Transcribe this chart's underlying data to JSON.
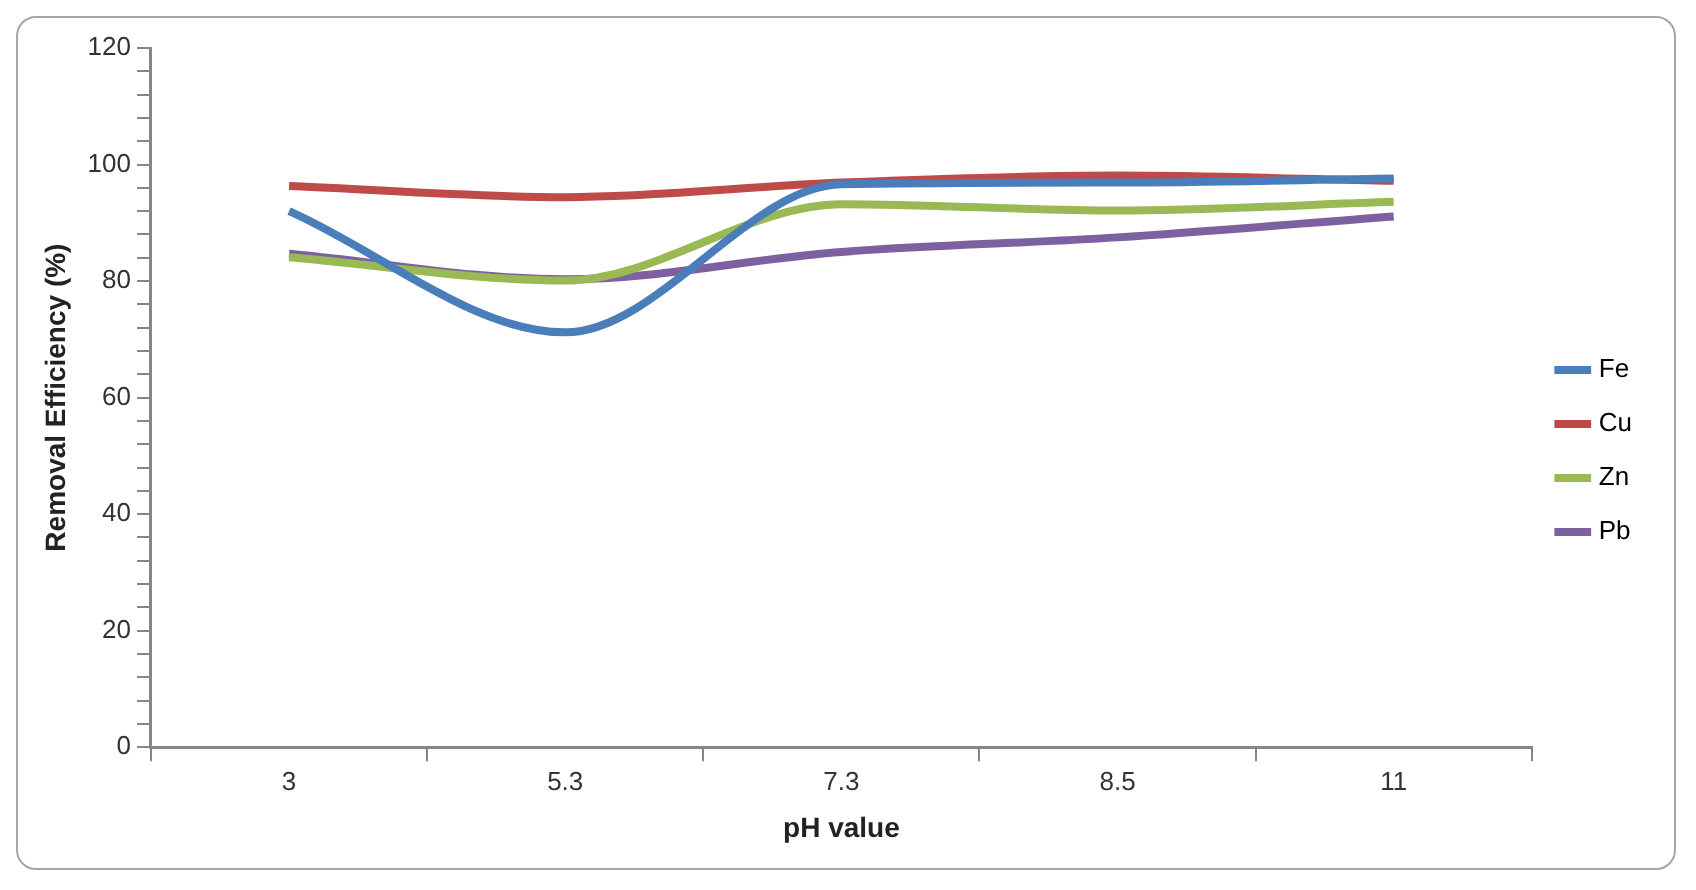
{
  "chart_data": {
    "type": "line",
    "xlabel": "pH value",
    "ylabel": "Removal Efficiency (%)",
    "categories": [
      "3",
      "5.3",
      "7.3",
      "8.5",
      "11"
    ],
    "series": [
      {
        "name": "Fe",
        "color": "#4a7ebb",
        "values": [
          92,
          71.2,
          96.6,
          96.9,
          97.6
        ]
      },
      {
        "name": "Cu",
        "color": "#be4b48",
        "values": [
          96.3,
          94.4,
          96.9,
          98.1,
          97.2
        ]
      },
      {
        "name": "Zn",
        "color": "#98b954",
        "values": [
          84.1,
          80.1,
          93.2,
          92.1,
          93.6
        ]
      },
      {
        "name": "Pb",
        "color": "#7d60a0",
        "values": [
          84.7,
          80.3,
          85,
          87.5,
          91.1
        ]
      }
    ],
    "ylim": [
      0,
      120
    ],
    "yticks": [
      0,
      {
        "value": 4,
        "label": null
      },
      {
        "value": 8,
        "label": null
      },
      {
        "value": 12,
        "label": null
      },
      {
        "value": 16,
        "label": null
      },
      20,
      {
        "value": 24,
        "label": null
      },
      {
        "value": 28,
        "label": null
      },
      {
        "value": 32,
        "label": null
      },
      {
        "value": 36,
        "label": null
      },
      40,
      {
        "value": 44,
        "label": null
      },
      {
        "value": 48,
        "label": null
      },
      {
        "value": 52,
        "label": null
      },
      {
        "value": 56,
        "label": null
      },
      60,
      {
        "value": 64,
        "label": null
      },
      {
        "value": 68,
        "label": null
      },
      {
        "value": 72,
        "label": null
      },
      {
        "value": 76,
        "label": null
      },
      80,
      {
        "value": 84,
        "label": null
      },
      {
        "value": 88,
        "label": null
      },
      {
        "value": 92,
        "label": null
      },
      {
        "value": 96,
        "label": null
      },
      100,
      {
        "value": 104,
        "label": null
      },
      {
        "value": 108,
        "label": null
      },
      {
        "value": 112,
        "label": null
      },
      {
        "value": 116,
        "label": null
      },
      120
    ],
    "grid": false,
    "legend": "right",
    "marker": "none",
    "line_style": "solid"
  }
}
